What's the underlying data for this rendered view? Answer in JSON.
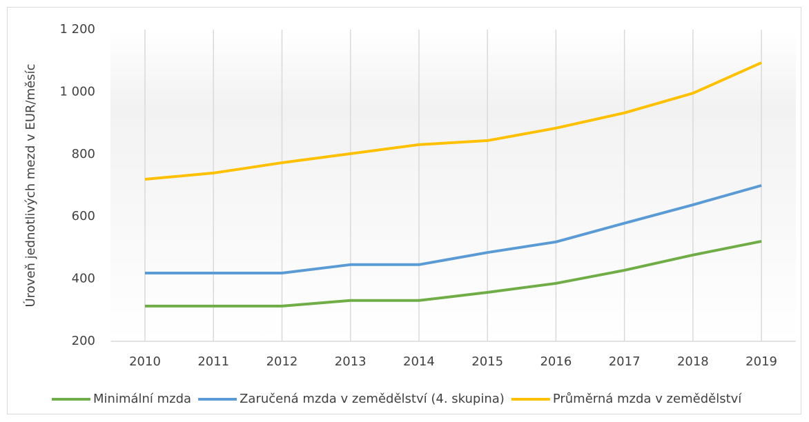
{
  "chart_data": {
    "type": "line",
    "y_label": "Úroveň jednotlivých mezd v EUR/měsíc",
    "categories": [
      "2010",
      "2011",
      "2012",
      "2013",
      "2014",
      "2015",
      "2016",
      "2017",
      "2018",
      "2019"
    ],
    "series": [
      {
        "name": "Minimální mzda",
        "color": "#70ad47",
        "values": [
          313,
          313,
          313,
          331,
          331,
          357,
          386,
          428,
          477,
          521
        ]
      },
      {
        "name": "Zaručená mzda v zemědělství (4. skupina)",
        "color": "#5b9bd5",
        "values": [
          419,
          419,
          419,
          446,
          446,
          485,
          519,
          579,
          638,
          700
        ]
      },
      {
        "name": "Průměrná mzda v zemědělství",
        "color": "#ffc000",
        "values": [
          720,
          740,
          773,
          802,
          831,
          844,
          884,
          933,
          996,
          1094
        ]
      }
    ],
    "ylim": [
      200,
      1200
    ],
    "yticks": [
      200,
      400,
      600,
      800,
      {
        "value": 1000,
        "label": "1 000"
      },
      {
        "value": 1200,
        "label": "1 200"
      }
    ],
    "grid": true,
    "legend": "bottom"
  }
}
